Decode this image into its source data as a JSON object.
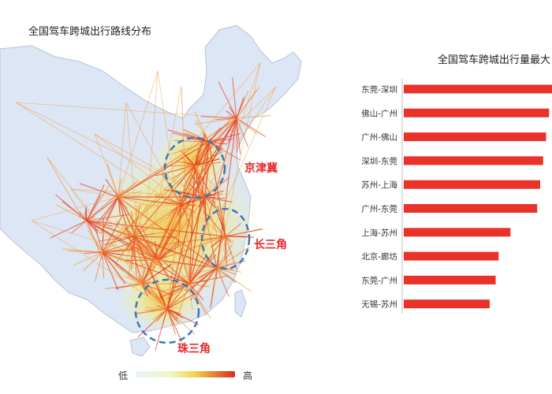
{
  "map": {
    "title": "全国驾车跨城出行路线分布",
    "regions": [
      {
        "id": "jingjinji",
        "label": "京津冀"
      },
      {
        "id": "changsanjiao",
        "label": "长三角"
      },
      {
        "id": "zhusanjiao",
        "label": "珠三角"
      }
    ],
    "legend": {
      "low": "低",
      "high": "高"
    },
    "colors": {
      "land": "#dde6f4",
      "heat_low": "#f2f7c2",
      "heat_mid": "#f4d24a",
      "heat_high": "#e0321e",
      "route": "#e8412a",
      "dash": "#3f76b8"
    }
  },
  "chart_data": {
    "type": "bar",
    "title": "全国驾车跨城出行量最大",
    "orientation": "horizontal",
    "categories": [
      "东莞-深圳",
      "佛山-广州",
      "广州-佛山",
      "深圳-东莞",
      "苏州-上海",
      "广州-东莞",
      "上海-苏州",
      "北京-廊坊",
      "东莞-广州",
      "无锡-苏州"
    ],
    "values": [
      100,
      98,
      96,
      94,
      92,
      90,
      72,
      64,
      62,
      58
    ],
    "xlim": [
      0,
      100
    ],
    "bar_color": "#e8322a"
  }
}
